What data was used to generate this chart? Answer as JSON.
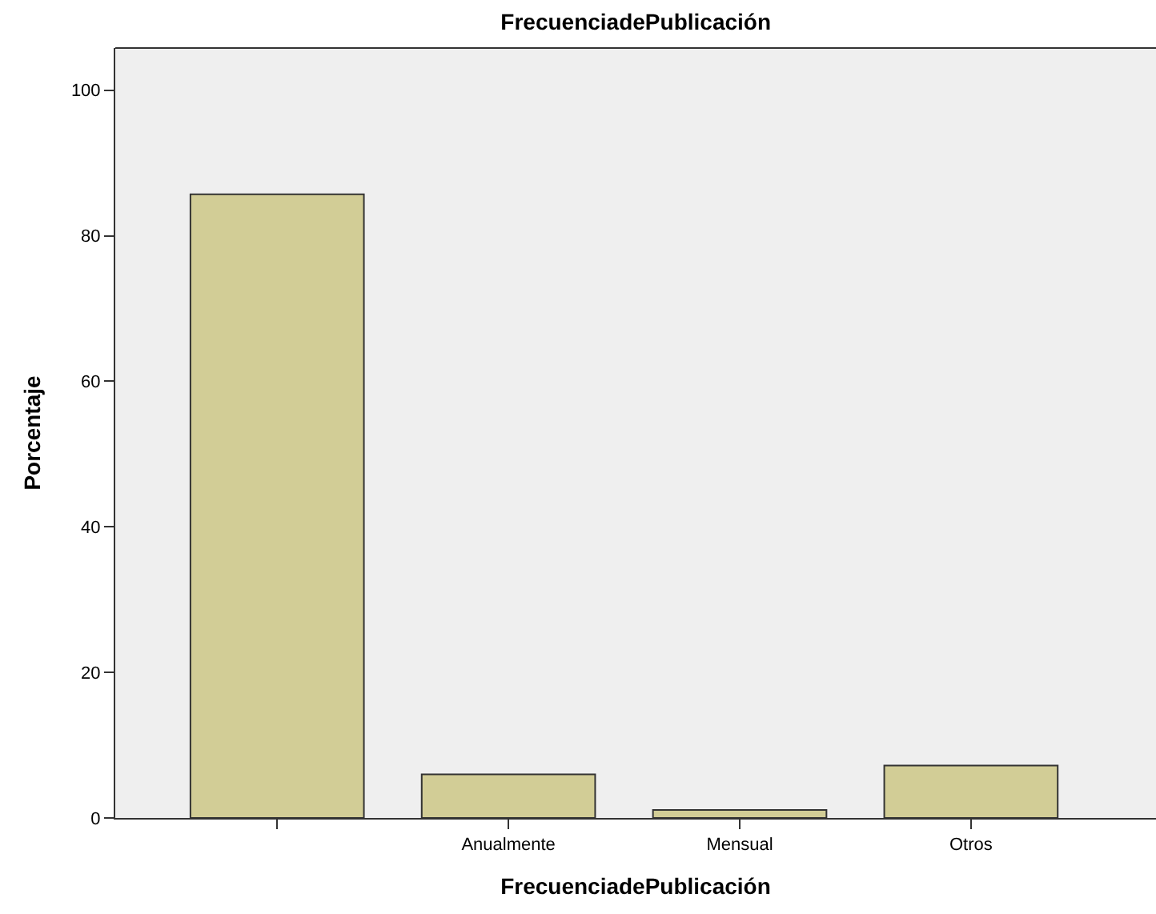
{
  "chart_data": {
    "type": "bar",
    "title": "FrecuenciadePublicación",
    "xlabel": "FrecuenciadePublicación",
    "ylabel": "Porcentaje",
    "categories": [
      null,
      "Anualmente",
      "Mensual",
      "Otros"
    ],
    "values": [
      85.7,
      6.0,
      1.1,
      7.2
    ],
    "color": "#d2cd96",
    "ylim": [
      0,
      105.8
    ],
    "yticks": [
      0,
      20,
      40,
      60,
      80,
      100
    ],
    "grid": false
  }
}
